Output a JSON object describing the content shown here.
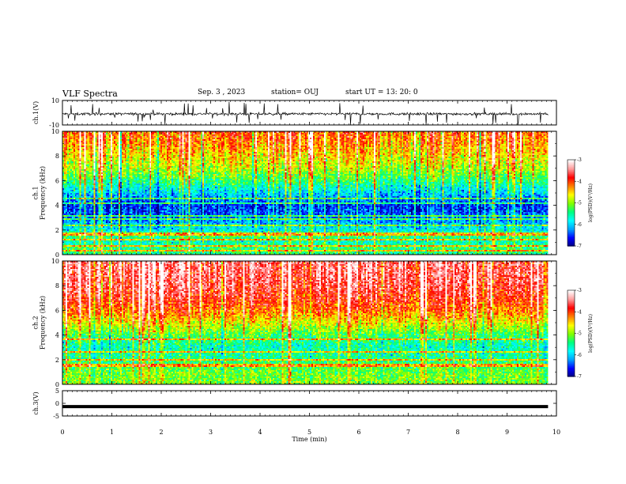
{
  "header": {
    "title": "VLF Spectra",
    "date": "Sep. 3 , 2023",
    "station": "station= OUJ",
    "start": "start UT = 13: 20: 0"
  },
  "chart_data": [
    {
      "type": "line",
      "name": "ch1-waveform",
      "ylabel": "ch.1(V)",
      "ylim": [
        -10,
        10
      ],
      "yticks": [
        10,
        -10
      ],
      "baseline": -1,
      "xlim": [
        0,
        10
      ],
      "data_end_min": 9.83
    },
    {
      "type": "heatmap",
      "name": "ch1-spectrogram",
      "ylabel": "ch.1\nFrequency (kHz)",
      "ylim": [
        0,
        10
      ],
      "yticks": [
        0,
        2,
        4,
        6,
        8,
        10
      ],
      "xlim": [
        0,
        10
      ],
      "data_end_min": 9.83,
      "colorbar": {
        "label": "log(PSD)(V²/Hz)",
        "range": [
          -7,
          -3
        ],
        "ticks": [
          -3,
          -4,
          -5,
          -6,
          -7
        ]
      },
      "profile_log_psd": [
        {
          "f_khz": 0.0,
          "v": -5.4
        },
        {
          "f_khz": 0.5,
          "v": -5.3
        },
        {
          "f_khz": 1.0,
          "v": -5.6
        },
        {
          "f_khz": 1.5,
          "v": -5.2
        },
        {
          "f_khz": 2.0,
          "v": -5.8
        },
        {
          "f_khz": 3.0,
          "v": -6.3
        },
        {
          "f_khz": 4.0,
          "v": -6.5
        },
        {
          "f_khz": 5.0,
          "v": -5.9
        },
        {
          "f_khz": 6.0,
          "v": -5.3
        },
        {
          "f_khz": 7.0,
          "v": -4.8
        },
        {
          "f_khz": 8.0,
          "v": -4.5
        },
        {
          "f_khz": 9.0,
          "v": -4.2
        },
        {
          "f_khz": 10.0,
          "v": -4.0
        }
      ],
      "lines_khz": [
        0.2,
        0.6,
        1.2,
        1.5,
        1.7,
        2.4,
        2.8,
        3.1,
        4.1,
        4.6
      ]
    },
    {
      "type": "heatmap",
      "name": "ch2-spectrogram",
      "ylabel": "ch.2\nFrequency (kHz)",
      "ylim": [
        0,
        10
      ],
      "yticks": [
        0,
        2,
        4,
        6,
        8,
        10
      ],
      "xlim": [
        0,
        10
      ],
      "data_end_min": 9.83,
      "colorbar": {
        "label": "log(PSD)(V²/Hz)",
        "range": [
          -7,
          -3
        ],
        "ticks": [
          -3,
          -4,
          -5,
          -6,
          -7
        ]
      },
      "profile_log_psd": [
        {
          "f_khz": 0.0,
          "v": -5.0
        },
        {
          "f_khz": 1.0,
          "v": -5.1
        },
        {
          "f_khz": 2.0,
          "v": -5.4
        },
        {
          "f_khz": 3.0,
          "v": -5.6
        },
        {
          "f_khz": 4.0,
          "v": -5.2
        },
        {
          "f_khz": 5.0,
          "v": -4.6
        },
        {
          "f_khz": 6.0,
          "v": -4.1
        },
        {
          "f_khz": 7.0,
          "v": -3.8
        },
        {
          "f_khz": 8.0,
          "v": -3.6
        },
        {
          "f_khz": 9.0,
          "v": -3.5
        },
        {
          "f_khz": 10.0,
          "v": -3.5
        }
      ],
      "lines_khz": [
        1.4,
        1.6,
        2.0,
        2.6,
        3.6
      ]
    },
    {
      "type": "line",
      "name": "ch3-signal",
      "ylabel": "ch.3(V)",
      "ylim": [
        -5,
        5
      ],
      "yticks": [
        5,
        0,
        -5
      ],
      "value": -1.3,
      "xlim": [
        0,
        10
      ],
      "data_end_min": 9.83
    }
  ],
  "x_axis": {
    "label": "Time (min)",
    "ticks": [
      0,
      1,
      2,
      3,
      4,
      5,
      6,
      7,
      8,
      9,
      10
    ]
  },
  "colors": {
    "colormap": [
      "#00007f",
      "#0000ff",
      "#00a0ff",
      "#00ffff",
      "#00ff80",
      "#80ff00",
      "#ffff00",
      "#ff8000",
      "#ff0000",
      "#ff9a9a",
      "#ffffff"
    ],
    "axis": "#000000",
    "trace": "#000000"
  }
}
